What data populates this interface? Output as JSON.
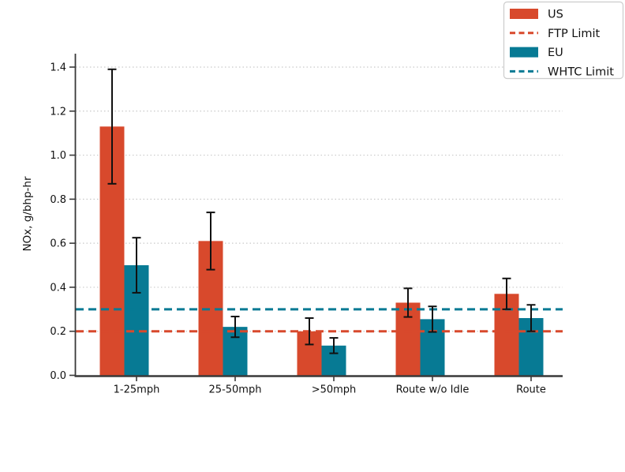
{
  "chart_data": {
    "type": "bar",
    "title": "",
    "xlabel": "",
    "ylabel": "NOx, g/bhp-hr",
    "categories": [
      "1-25mph",
      "25-50mph",
      ">50mph",
      "Route w/o Idle",
      "Route"
    ],
    "series": [
      {
        "name": "US",
        "color": "#d8492c",
        "values": [
          1.13,
          0.61,
          0.2,
          0.33,
          0.37
        ],
        "errors": [
          0.26,
          0.13,
          0.06,
          0.065,
          0.07
        ]
      },
      {
        "name": "EU",
        "color": "#077a94",
        "values": [
          0.5,
          0.22,
          0.135,
          0.255,
          0.26
        ],
        "errors": [
          0.125,
          0.047,
          0.035,
          0.058,
          0.06
        ]
      }
    ],
    "limit_lines": [
      {
        "name": "FTP Limit",
        "value": 0.2,
        "color": "#d8492c",
        "style": "dashed"
      },
      {
        "name": "WHTC Limit",
        "value": 0.3,
        "color": "#077a94",
        "style": "dashed"
      }
    ],
    "legend": [
      {
        "label": "US",
        "swatch": "patch",
        "color": "#d8492c"
      },
      {
        "label": "FTP Limit",
        "swatch": "dashed-line",
        "color": "#d8492c"
      },
      {
        "label": "EU",
        "swatch": "patch",
        "color": "#077a94"
      },
      {
        "label": "WHTC Limit",
        "swatch": "dashed-line",
        "color": "#077a94"
      }
    ],
    "legend_position": "top-right",
    "ylim": [
      0,
      1.46
    ],
    "yticks": [
      0.0,
      0.2,
      0.4,
      0.6,
      0.8,
      1.0,
      1.2,
      1.4
    ],
    "ytick_labels": [
      "0.0",
      "0.2",
      "0.4",
      "0.6",
      "0.8",
      "1.0",
      "1.2",
      "1.4"
    ],
    "grid": "horizontal-dotted",
    "error_bar_color": "#111111",
    "axis_color": "#3a3a3a",
    "grid_color": "#c9c9c9"
  }
}
